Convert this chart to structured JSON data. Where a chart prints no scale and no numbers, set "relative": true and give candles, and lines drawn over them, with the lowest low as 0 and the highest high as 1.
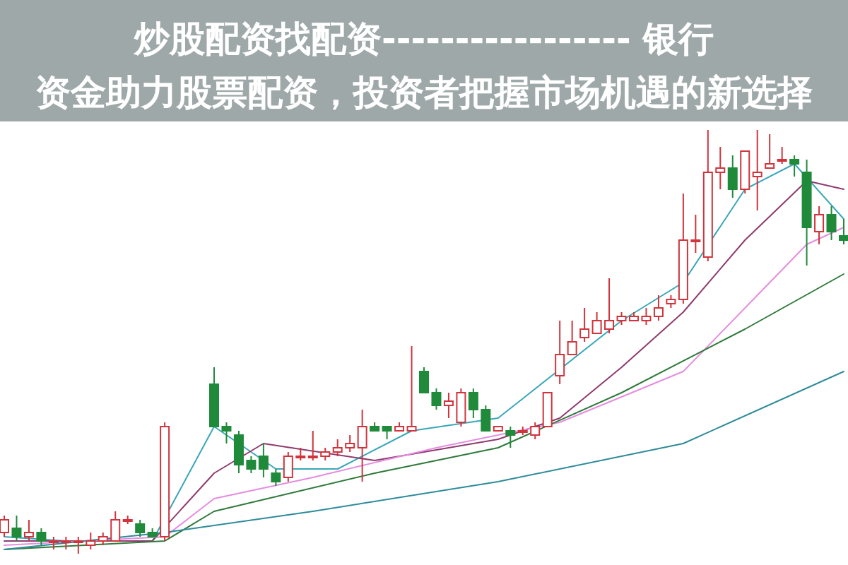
{
  "chart_data": {
    "type": "candlestick",
    "relative": true,
    "title": "炒股配资找配资----------------- 银行",
    "subtitle": "资金助力股票配资，投资者把握市场机遇的新选择",
    "categories": [
      null,
      null,
      null,
      null,
      null,
      null,
      null,
      null,
      null,
      null,
      null,
      null,
      null,
      null,
      null,
      null,
      null,
      null,
      null,
      null,
      null,
      null,
      null,
      null,
      null,
      null,
      null,
      null,
      null,
      null,
      null,
      null,
      null,
      null,
      null,
      null,
      null,
      null,
      null,
      null,
      null,
      null,
      null,
      null,
      null,
      null,
      null,
      null,
      null,
      null,
      null,
      null,
      null,
      null,
      null,
      null,
      null,
      null,
      null,
      null,
      null,
      null,
      null,
      null,
      null,
      null,
      null,
      null,
      null
    ],
    "ohlc": [
      [
        0.05,
        0.09,
        0.04,
        0.08
      ],
      [
        0.06,
        0.09,
        0.03,
        0.04
      ],
      [
        0.04,
        0.08,
        0.03,
        0.05
      ],
      [
        0.05,
        0.06,
        0.02,
        0.03
      ],
      [
        0.03,
        0.04,
        0.01,
        0.03
      ],
      [
        0.03,
        0.04,
        0.01,
        0.03
      ],
      [
        0.03,
        0.04,
        0.0,
        0.03
      ],
      [
        0.02,
        0.05,
        0.01,
        0.03
      ],
      [
        0.03,
        0.05,
        0.02,
        0.04
      ],
      [
        0.03,
        0.1,
        0.03,
        0.08
      ],
      [
        0.08,
        0.09,
        0.07,
        0.08
      ],
      [
        0.07,
        0.08,
        0.04,
        0.05
      ],
      [
        0.05,
        0.06,
        0.04,
        0.04
      ],
      [
        0.04,
        0.31,
        0.03,
        0.3
      ],
      null,
      null,
      null,
      [
        0.4,
        0.44,
        0.3,
        0.3
      ],
      [
        0.3,
        0.31,
        0.26,
        0.29
      ],
      [
        0.28,
        0.29,
        0.19,
        0.21
      ],
      [
        0.22,
        0.23,
        0.19,
        0.2
      ],
      [
        0.23,
        0.26,
        0.18,
        0.2
      ],
      [
        0.19,
        0.2,
        0.16,
        0.17
      ],
      [
        0.18,
        0.24,
        0.17,
        0.23
      ],
      [
        0.23,
        0.25,
        0.22,
        0.23
      ],
      [
        0.23,
        0.29,
        0.22,
        0.23
      ],
      [
        0.23,
        0.25,
        0.22,
        0.24
      ],
      [
        0.24,
        0.27,
        0.23,
        0.25
      ],
      [
        0.25,
        0.28,
        0.24,
        0.26
      ],
      [
        0.25,
        0.34,
        0.17,
        0.3
      ],
      [
        0.3,
        0.31,
        0.29,
        0.29
      ],
      [
        0.3,
        0.3,
        0.27,
        0.29
      ],
      [
        0.29,
        0.31,
        0.29,
        0.3
      ],
      [
        0.29,
        0.49,
        0.29,
        0.3
      ],
      [
        0.43,
        0.44,
        0.38,
        0.38
      ],
      [
        0.38,
        0.39,
        0.34,
        0.35
      ],
      [
        0.35,
        0.38,
        0.32,
        0.36
      ],
      [
        0.31,
        0.39,
        0.3,
        0.38
      ],
      [
        0.38,
        0.39,
        0.32,
        0.34
      ],
      [
        0.34,
        0.35,
        0.29,
        0.29
      ],
      [
        0.29,
        0.3,
        0.29,
        0.3
      ],
      [
        0.29,
        0.3,
        0.25,
        0.28
      ],
      [
        0.29,
        0.3,
        0.28,
        0.29
      ],
      [
        0.28,
        0.31,
        0.27,
        0.3
      ],
      [
        0.3,
        0.38,
        0.3,
        0.38
      ],
      [
        0.42,
        0.55,
        0.4,
        0.47
      ],
      [
        0.47,
        0.55,
        0.47,
        0.5
      ],
      [
        0.51,
        0.58,
        0.5,
        0.53
      ],
      [
        0.52,
        0.57,
        0.52,
        0.55
      ],
      [
        0.53,
        0.65,
        0.52,
        0.55
      ],
      [
        0.55,
        0.57,
        0.54,
        0.56
      ],
      [
        0.55,
        0.57,
        0.55,
        0.56
      ],
      [
        0.55,
        0.58,
        0.54,
        0.56
      ],
      [
        0.56,
        0.61,
        0.55,
        0.58
      ],
      [
        0.59,
        0.61,
        0.58,
        0.6
      ],
      [
        0.6,
        0.85,
        0.59,
        0.74
      ],
      [
        0.74,
        0.8,
        0.71,
        0.74
      ],
      [
        0.7,
        1.0,
        0.69,
        0.9
      ],
      [
        0.9,
        0.96,
        0.86,
        0.91
      ],
      [
        0.91,
        0.94,
        0.84,
        0.86
      ],
      [
        0.86,
        0.95,
        0.85,
        0.95
      ],
      [
        0.89,
        1.0,
        0.81,
        0.9
      ],
      [
        0.91,
        0.99,
        0.91,
        0.92
      ],
      [
        0.93,
        0.96,
        0.92,
        0.93
      ],
      [
        0.93,
        0.94,
        0.89,
        0.92
      ],
      [
        0.9,
        0.93,
        0.68,
        0.77
      ],
      [
        0.76,
        0.82,
        0.73,
        0.8
      ],
      [
        0.8,
        0.82,
        0.74,
        0.76
      ],
      [
        0.75,
        0.79,
        0.73,
        0.74
      ]
    ],
    "series": [
      {
        "type": "line",
        "color": "#3aa6b9",
        "values": [
          0.04,
          null,
          null,
          null,
          null,
          0.03,
          null,
          null,
          null,
          null,
          null,
          null,
          0.03,
          null,
          null,
          null,
          null,
          0.3,
          null,
          null,
          null,
          null,
          0.2,
          null,
          null,
          null,
          null,
          0.2,
          null,
          null,
          null,
          null,
          null,
          0.29,
          null,
          null,
          null,
          null,
          null,
          null,
          0.32,
          null,
          null,
          null,
          null,
          null,
          null,
          null,
          null,
          null,
          0.55,
          null,
          null,
          null,
          null,
          0.64,
          null,
          null,
          null,
          null,
          0.86,
          null,
          null,
          null,
          0.92,
          null,
          null,
          null,
          0.79
        ]
      },
      {
        "type": "line",
        "color": "#8e3b6e",
        "values": [
          0.03,
          null,
          null,
          null,
          null,
          null,
          null,
          null,
          null,
          null,
          null,
          null,
          0.03,
          null,
          null,
          null,
          null,
          0.19,
          null,
          null,
          null,
          0.26,
          null,
          null,
          null,
          null,
          null,
          null,
          null,
          null,
          0.22,
          null,
          null,
          null,
          null,
          null,
          null,
          null,
          null,
          null,
          0.27,
          null,
          null,
          null,
          null,
          0.32,
          null,
          null,
          null,
          null,
          0.44,
          null,
          null,
          null,
          null,
          0.57,
          null,
          null,
          null,
          null,
          0.74,
          null,
          null,
          null,
          null,
          0.88,
          null,
          null,
          0.86
        ]
      },
      {
        "type": "line",
        "color": "#e58de0",
        "values": [
          0.02,
          null,
          null,
          null,
          null,
          null,
          null,
          null,
          null,
          null,
          null,
          null,
          null,
          0.04,
          null,
          null,
          null,
          0.13,
          null,
          null,
          null,
          null,
          null,
          null,
          null,
          0.18,
          null,
          null,
          null,
          null,
          null,
          null,
          null,
          null,
          null,
          0.25,
          null,
          null,
          null,
          null,
          null,
          null,
          null,
          null,
          null,
          0.31,
          null,
          null,
          null,
          null,
          null,
          null,
          null,
          null,
          null,
          0.43,
          null,
          null,
          null,
          null,
          null,
          0.61,
          null,
          null,
          null,
          0.73,
          null,
          null,
          0.77
        ]
      },
      {
        "type": "line",
        "color": "#2f7a3a",
        "values": [
          0.01,
          null,
          null,
          null,
          null,
          null,
          null,
          null,
          null,
          null,
          null,
          null,
          null,
          0.03,
          null,
          null,
          null,
          0.1,
          null,
          null,
          null,
          null,
          null,
          null,
          null,
          null,
          null,
          null,
          null,
          null,
          0.19,
          null,
          null,
          null,
          null,
          null,
          null,
          null,
          null,
          null,
          0.25,
          null,
          null,
          null,
          null,
          null,
          null,
          null,
          null,
          null,
          0.38,
          null,
          null,
          null,
          null,
          null,
          null,
          null,
          null,
          null,
          0.53,
          null,
          null,
          null,
          null,
          null,
          null,
          null,
          0.66
        ]
      },
      {
        "type": "line",
        "color": "#2e8b9a",
        "values": [
          0.01,
          null,
          null,
          null,
          null,
          null,
          null,
          null,
          null,
          null,
          null,
          null,
          null,
          0.05,
          null,
          null,
          null,
          null,
          null,
          null,
          null,
          null,
          null,
          null,
          null,
          0.1,
          null,
          null,
          null,
          null,
          null,
          null,
          null,
          null,
          null,
          null,
          null,
          null,
          null,
          null,
          0.17,
          null,
          null,
          null,
          null,
          null,
          null,
          null,
          null,
          null,
          null,
          null,
          null,
          null,
          null,
          0.26,
          null,
          null,
          null,
          null,
          null,
          null,
          null,
          null,
          null,
          null,
          null,
          null,
          0.43
        ]
      }
    ]
  }
}
